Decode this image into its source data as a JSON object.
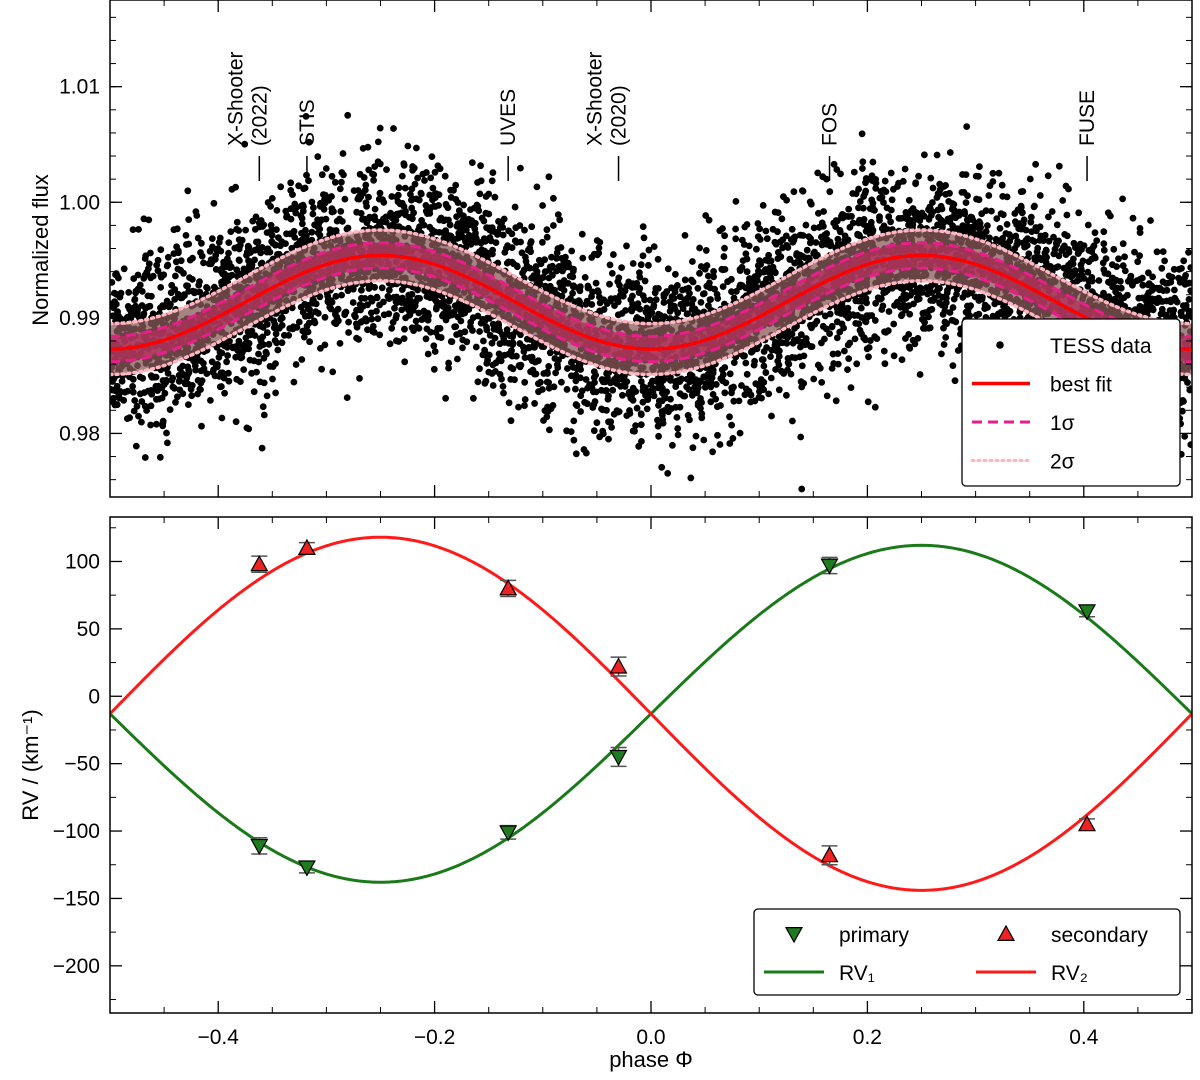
{
  "chart_data": [
    {
      "type": "scatter",
      "panel": "top",
      "title": "",
      "xlabel": "",
      "ylabel": "Normalized flux",
      "xlim": [
        -0.5,
        0.5
      ],
      "ylim": [
        0.9745,
        1.0175
      ],
      "yticks": [
        0.98,
        0.99,
        1.0,
        1.01
      ],
      "ytick_labels": [
        "0.98",
        "0.99",
        "1.00",
        "1.01"
      ],
      "scatter_noise_sigma": 0.0038,
      "scatter_count": 6000,
      "model": {
        "description": "flux = 0.99135 - 0.00405 * cos(4*pi*phase)",
        "mean": 0.99135,
        "amplitude": 0.00405,
        "sigma1": 0.0011,
        "sigma2": 0.0022
      },
      "annotations": [
        {
          "phase": -0.362,
          "lines": [
            "X-Shooter",
            "(2022)"
          ]
        },
        {
          "phase": -0.318,
          "lines": [
            "STIS"
          ]
        },
        {
          "phase": -0.132,
          "lines": [
            "UVES"
          ]
        },
        {
          "phase": -0.03,
          "lines": [
            "X-Shooter",
            "(2020)"
          ]
        },
        {
          "phase": 0.165,
          "lines": [
            "FOS"
          ]
        },
        {
          "phase": 0.403,
          "lines": [
            "FUSE"
          ]
        }
      ],
      "legend": {
        "position": "lower-right",
        "entries": [
          {
            "label": "TESS data",
            "style": "dot",
            "color": "#000000"
          },
          {
            "label": "best fit",
            "style": "solid",
            "color": "#ff0000"
          },
          {
            "label": "1σ",
            "style": "dashed",
            "color": "#e91e8c"
          },
          {
            "label": "2σ",
            "style": "dotted",
            "color": "#ffb6c1"
          }
        ]
      },
      "colors": {
        "data": "#000000",
        "fit": "#ff0000",
        "sigma1": "#e91e8c",
        "sigma2": "#ffb6c1",
        "band": "#7a4a4a"
      }
    },
    {
      "type": "scatter",
      "panel": "bottom",
      "title": "",
      "xlabel": "phase Φ",
      "ylabel": "RV / (km⁻¹)",
      "xlim": [
        -0.5,
        0.5
      ],
      "ylim": [
        -235,
        133
      ],
      "xticks": [
        -0.4,
        -0.2,
        0.0,
        0.2,
        0.4
      ],
      "xtick_labels": [
        "−0.4",
        "−0.2",
        "0.0",
        "0.2",
        "0.4"
      ],
      "yticks": [
        -200,
        -150,
        -100,
        -50,
        0,
        50,
        100
      ],
      "ytick_labels": [
        "−200",
        "−150",
        "−100",
        "−50",
        "0",
        "50",
        "100"
      ],
      "curves": {
        "gamma": -13,
        "rv1": {
          "name": "RV₁",
          "amplitude": 125,
          "color": "#1a7a1a",
          "description": "RV1 = gamma + K1*sin(2*pi*phase)"
        },
        "rv2": {
          "name": "RV₂",
          "amplitude": 131,
          "color": "#ff1a1a",
          "description": "RV2 = gamma - K2*sin(2*pi*phase)"
        }
      },
      "series": [
        {
          "name": "primary",
          "marker": "triangle-down",
          "color": "#1e7b1e",
          "points": [
            {
              "x": -0.362,
              "y": -111,
              "err": 6
            },
            {
              "x": -0.318,
              "y": -127,
              "err": 4
            },
            {
              "x": -0.132,
              "y": -101,
              "err": 5
            },
            {
              "x": -0.03,
              "y": -45,
              "err": 7
            },
            {
              "x": 0.165,
              "y": 97,
              "err": 6
            },
            {
              "x": 0.403,
              "y": 63,
              "err": 4
            }
          ]
        },
        {
          "name": "secondary",
          "marker": "triangle-up",
          "color": "#ee2222",
          "points": [
            {
              "x": -0.362,
              "y": 98,
              "err": 6
            },
            {
              "x": -0.318,
              "y": 110,
              "err": 4
            },
            {
              "x": -0.132,
              "y": 80,
              "err": 6
            },
            {
              "x": -0.03,
              "y": 22,
              "err": 7
            },
            {
              "x": 0.165,
              "y": -118,
              "err": 7
            },
            {
              "x": 0.403,
              "y": -95,
              "err": 4
            }
          ]
        }
      ],
      "legend": {
        "position": "lower-right",
        "entries": [
          {
            "label": "primary",
            "style": "triangle-down",
            "color": "#1e7b1e"
          },
          {
            "label": "secondary",
            "style": "triangle-up",
            "color": "#ee2222"
          },
          {
            "label": "RV₁",
            "style": "solid",
            "color": "#1a7a1a"
          },
          {
            "label": "RV₂",
            "style": "solid",
            "color": "#ff1a1a"
          }
        ]
      }
    }
  ]
}
